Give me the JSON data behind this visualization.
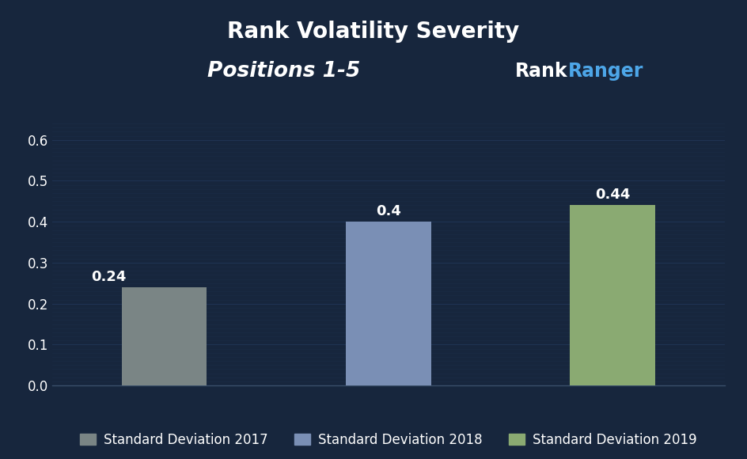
{
  "title": "Rank Volatility Severity",
  "subtitle": "Positions 1-5",
  "categories": [
    "Standard Deviation 2017",
    "Standard Deviation 2018",
    "Standard Deviation 2019"
  ],
  "values": [
    0.24,
    0.4,
    0.44
  ],
  "bar_colors": [
    "#7a8585",
    "#7a8fb5",
    "#8aaa72"
  ],
  "bar_labels": [
    "0.24",
    "0.4",
    "0.44"
  ],
  "ylim": [
    0,
    0.65
  ],
  "yticks": [
    0,
    0.1,
    0.2,
    0.3,
    0.4,
    0.5,
    0.6
  ],
  "background_color": "#17263d",
  "text_color": "#ffffff",
  "grid_color": "#1f3352",
  "title_fontsize": 20,
  "subtitle_fontsize": 19,
  "tick_fontsize": 12,
  "legend_fontsize": 12,
  "bar_label_fontsize": 13,
  "brandname_rank": "Rank",
  "brandname_ranger": "Ranger",
  "brand_color_rank": "#ffffff",
  "brand_color_ranger": "#4da6e8",
  "brand_fontsize": 17
}
